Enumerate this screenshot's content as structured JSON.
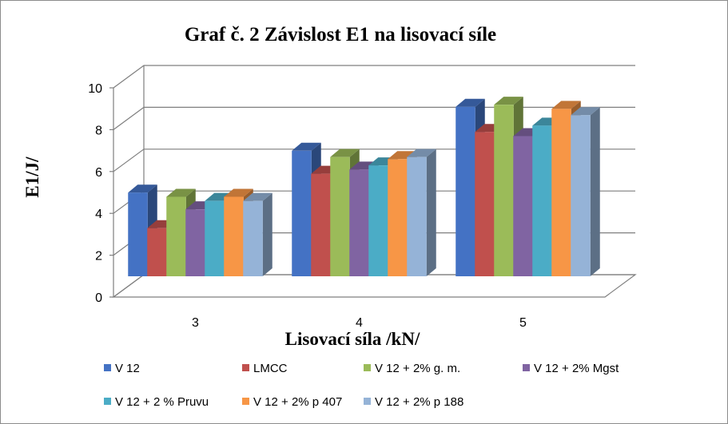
{
  "chart_data": {
    "type": "bar",
    "title": "Graf č. 2 Závislost E1 na lisovací síle",
    "xlabel": "Lisovací síla /kN/",
    "ylabel": "E1/J/",
    "categories": [
      "3",
      "4",
      "5"
    ],
    "ylim": [
      0,
      10
    ],
    "yticks": [
      "0",
      "2",
      "4",
      "6",
      "8",
      "10"
    ],
    "grid": true,
    "three_d": true,
    "legend_position": "bottom",
    "series": [
      {
        "name": "V 12",
        "color": "#4472c4",
        "values": [
          4.0,
          6.0,
          8.1
        ]
      },
      {
        "name": "LMCC",
        "color": "#c0504d",
        "values": [
          2.3,
          4.9,
          6.9
        ]
      },
      {
        "name": "V 12 + 2% g. m.",
        "color": "#9bbb59",
        "values": [
          3.8,
          5.7,
          8.2
        ]
      },
      {
        "name": "V 12 + 2% Mgst",
        "color": "#8064a2",
        "values": [
          3.2,
          5.1,
          6.7
        ]
      },
      {
        "name": "V 12 + 2 % Pruvu",
        "color": "#4bacc6",
        "values": [
          3.6,
          5.3,
          7.2
        ]
      },
      {
        "name": "V 12 + 2% p 407",
        "color": "#f79646",
        "values": [
          3.8,
          5.6,
          8.0
        ]
      },
      {
        "name": "V 12 + 2% p 188",
        "color": "#95b3d7",
        "values": [
          3.6,
          5.7,
          7.7
        ]
      }
    ]
  }
}
